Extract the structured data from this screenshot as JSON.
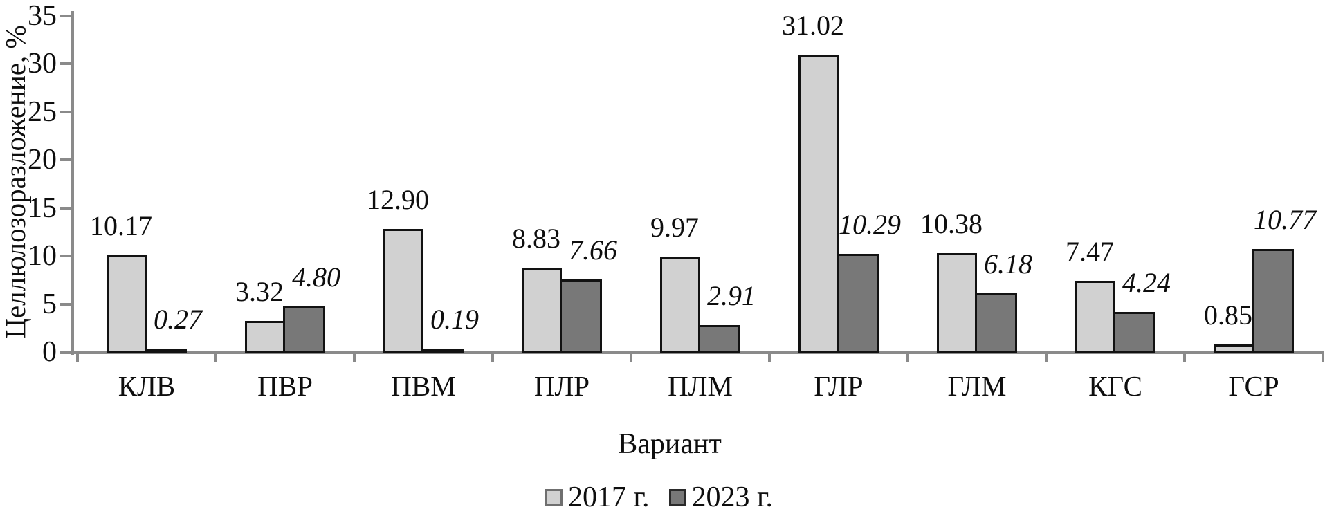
{
  "chart_data": {
    "type": "bar",
    "categories": [
      "КЛВ",
      "ПВР",
      "ПВМ",
      "ПЛР",
      "ПЛМ",
      "ГЛР",
      "ГЛМ",
      "КГС",
      "ГСР"
    ],
    "series": [
      {
        "name": "2017 г.",
        "values": [
          10.17,
          3.32,
          12.9,
          8.83,
          9.97,
          31.02,
          10.38,
          7.47,
          0.85
        ],
        "color": "#d1d1d1",
        "label_style": "normal"
      },
      {
        "name": "2023 г.",
        "values": [
          0.27,
          4.8,
          0.19,
          7.66,
          2.91,
          10.29,
          6.18,
          4.24,
          10.77
        ],
        "color": "#787878",
        "label_style": "italic"
      }
    ],
    "xlabel": "Вариант",
    "ylabel": "Целлюлозоразложение, %",
    "ylim": [
      0,
      35
    ],
    "yticks": [
      0,
      5,
      10,
      15,
      20,
      25,
      30,
      35
    ],
    "grid": false,
    "legend_position": "bottom",
    "value_label_decimals": 2,
    "bar_border_color": "#121212",
    "axis_color": "#8a8a8a",
    "text_color": "#0e0e0e",
    "background_color": "#ffffff"
  }
}
